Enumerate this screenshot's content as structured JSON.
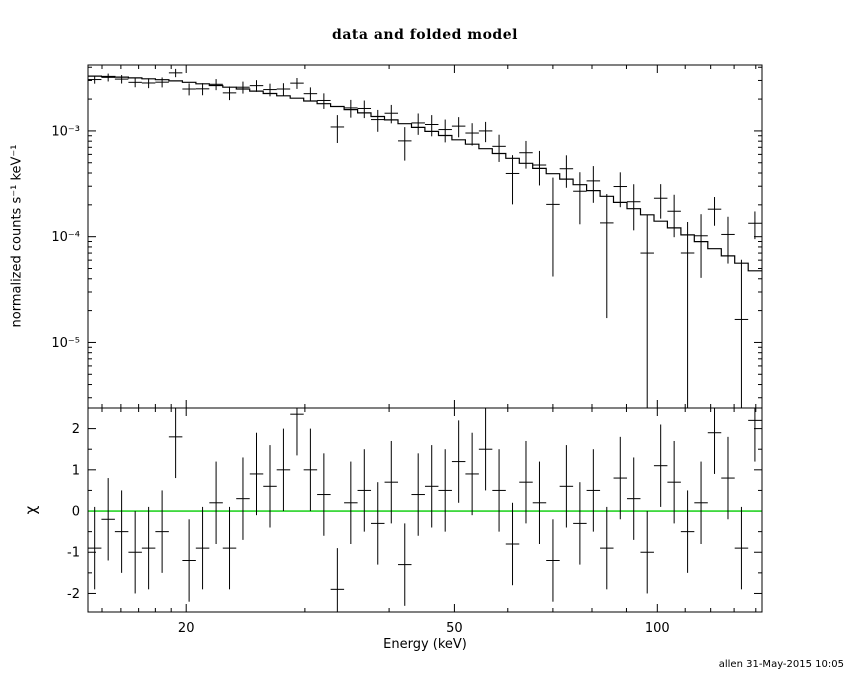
{
  "footer": "allen 31-May-2015 10:05",
  "chart_data": {
    "type": "scatter",
    "title": "data and folded model",
    "xlabel": "Energy (keV)",
    "ylabel_top": "normalized counts s⁻¹ keV⁻¹",
    "ylabel_bottom": "χ",
    "xscale": "log",
    "yscale_top": "log",
    "grid": false,
    "xlim": [
      14.3,
      143.0
    ],
    "ylim_top": [
      2.4e-06,
      0.0042
    ],
    "ylim_bottom": [
      -2.45,
      2.5
    ],
    "x_major_ticks": [
      20,
      50,
      100
    ],
    "x_tick_labels": [
      "20",
      "50",
      "100"
    ],
    "x_minor_ticks": [
      15,
      16,
      17,
      18,
      19,
      30,
      40,
      60,
      70,
      80,
      90,
      110,
      120,
      130,
      140
    ],
    "y_major_ticks_top": [
      0.001,
      0.0001,
      1e-05
    ],
    "y_tick_labels_top": [
      "10⁻³",
      "10⁻⁴",
      "10⁻⁵"
    ],
    "y_major_ticks_bottom": [
      -2,
      -1,
      0,
      1,
      2
    ],
    "y_tick_labels_bottom": [
      "-2",
      "-1",
      "0",
      "1",
      "2"
    ],
    "zero_line_color": "#00cc00",
    "foreground_color": "#000000",
    "background_color": "#ffffff",
    "chi_err": 1.0,
    "bin_half_factor": 1.0233,
    "energy": [
      14.63,
      15.32,
      16.04,
      16.8,
      17.59,
      18.42,
      19.29,
      20.2,
      21.15,
      22.15,
      23.19,
      24.28,
      25.43,
      26.63,
      27.88,
      29.2,
      30.57,
      32.01,
      33.52,
      35.1,
      36.75,
      38.48,
      40.3,
      42.2,
      44.18,
      46.27,
      48.45,
      50.73,
      53.12,
      55.62,
      58.24,
      60.98,
      63.85,
      66.86,
      70.01,
      73.3,
      76.76,
      80.37,
      84.15,
      88.12,
      92.26,
      96.61,
      101.16,
      105.92,
      110.9,
      116.12,
      121.59,
      127.31,
      133.3,
      139.58
    ],
    "counts": [
      0.00306,
      0.00321,
      0.00309,
      0.00288,
      0.00284,
      0.00289,
      0.00354,
      0.00249,
      0.0025,
      0.00276,
      0.00229,
      0.00259,
      0.00268,
      0.00246,
      0.00249,
      0.00283,
      0.00225,
      0.00194,
      0.00109,
      0.00165,
      0.00163,
      0.00128,
      0.00147,
      0.000805,
      0.00119,
      0.00115,
      0.00103,
      0.00111,
      0.000955,
      0.001,
      0.000715,
      0.000396,
      0.000622,
      0.000476,
      0.000202,
      0.000439,
      0.000269,
      0.000337,
      0.000135,
      0.000298,
      0.000214,
      7e-05,
      0.000231,
      0.000174,
      7.01e-05,
      0.000102,
      0.000182,
      0.000105,
      1.65e-05,
      0.000134
    ],
    "counts_err": [
      0.000264,
      0.000275,
      0.000284,
      0.000292,
      0.000302,
      0.000311,
      0.000318,
      0.000323,
      0.000326,
      0.000331,
      0.000334,
      0.000336,
      0.000338,
      0.000337,
      0.000335,
      0.000335,
      0.00033,
      0.000326,
      0.000321,
      0.000315,
      0.000308,
      0.000299,
      0.000291,
      0.000281,
      0.000272,
      0.000261,
      0.000251,
      0.00024,
      0.000228,
      0.000217,
      0.000206,
      0.000194,
      0.000182,
      0.000171,
      0.00016,
      0.000149,
      0.000138,
      0.000128,
      0.000118,
      0.000108,
      9.92e-05,
      9.1e-05,
      8.29e-05,
      7.51e-05,
      6.77e-05,
      6.12e-05,
      5.51e-05,
      4.93e-05,
      4.4e-05,
      3.92e-05
    ],
    "model": [
      0.0033,
      0.00327,
      0.00323,
      0.00317,
      0.00311,
      0.00305,
      0.00297,
      0.00288,
      0.00279,
      0.00269,
      0.00259,
      0.00249,
      0.00238,
      0.00226,
      0.00215,
      0.00204,
      0.00192,
      0.00181,
      0.0017,
      0.00159,
      0.00148,
      0.00137,
      0.00127,
      0.00117,
      0.00108,
      0.00099,
      0.000905,
      0.000825,
      0.000749,
      0.000679,
      0.000612,
      0.000551,
      0.000494,
      0.000442,
      0.000394,
      0.00035,
      0.00031,
      0.000273,
      0.000241,
      0.000211,
      0.000184,
      0.000161,
      0.00014,
      0.000121,
      0.000104,
      8.98e-05,
      7.7e-05,
      6.58e-05,
      5.61e-05,
      4.76e-05
    ],
    "chi": [
      -0.9,
      -0.2,
      -0.5,
      -1.0,
      -0.9,
      -0.5,
      1.8,
      -1.2,
      -0.9,
      0.2,
      -0.9,
      0.3,
      0.9,
      0.6,
      1.0,
      2.35,
      1.0,
      0.4,
      -1.9,
      0.2,
      0.5,
      -0.3,
      0.7,
      -1.3,
      0.4,
      0.6,
      0.5,
      1.2,
      0.9,
      1.5,
      0.5,
      -0.8,
      0.7,
      0.2,
      -1.2,
      0.6,
      -0.3,
      0.5,
      -0.9,
      0.8,
      0.3,
      -1.0,
      1.1,
      0.7,
      -0.5,
      0.2,
      1.9,
      0.8,
      -0.9,
      2.2
    ]
  }
}
